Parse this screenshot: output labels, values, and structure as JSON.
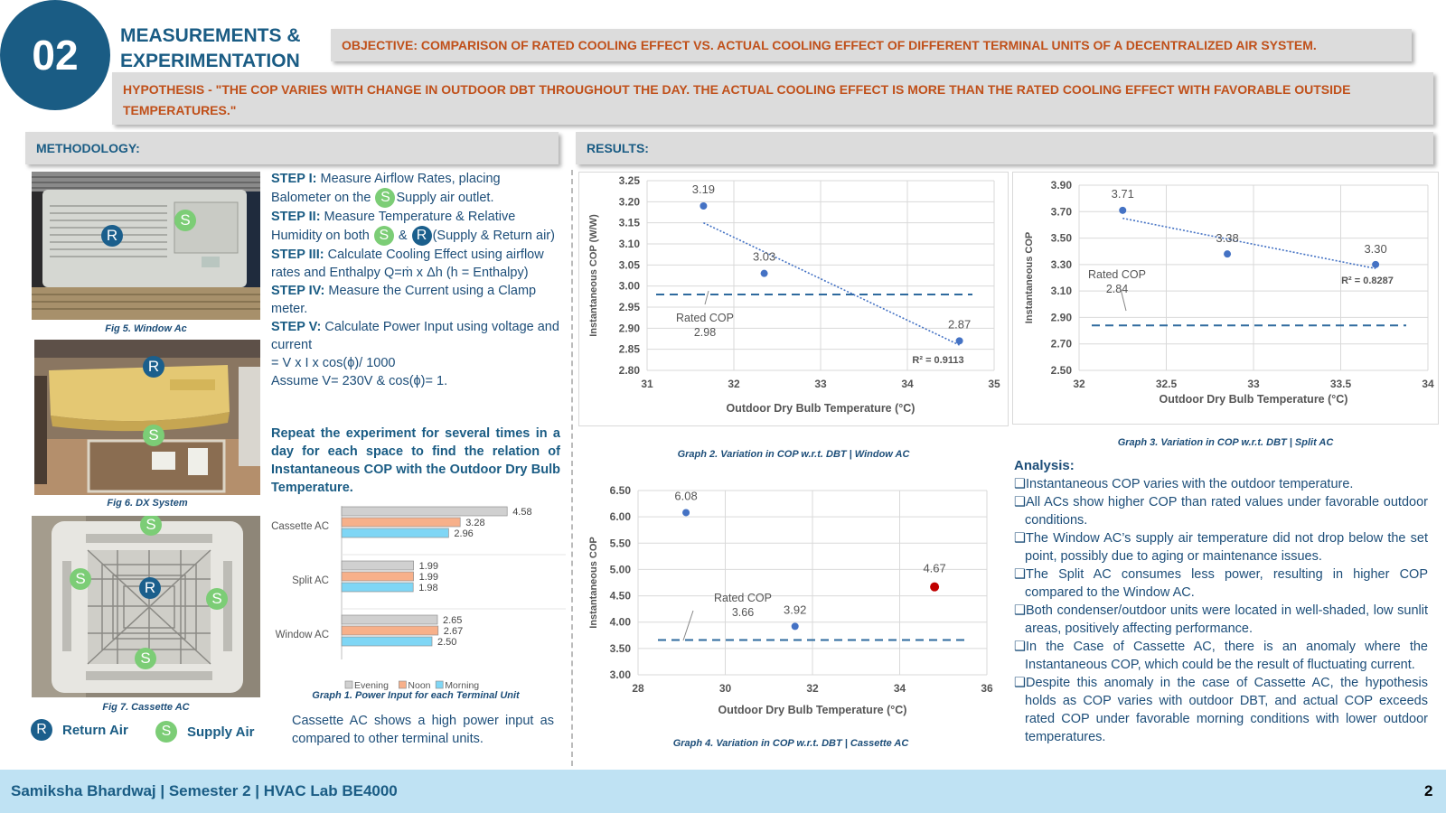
{
  "header": {
    "number": "02",
    "title_line1": "MEASUREMENTS &",
    "title_line2": "EXPERIMENTATION",
    "objective": "OBJECTIVE: COMPARISON OF RATED COOLING EFFECT VS. ACTUAL COOLING EFFECT OF DIFFERENT TERMINAL UNITS OF A DECENTRALIZED AIR SYSTEM.",
    "hypothesis": "HYPOTHESIS - \"THE COP VARIES WITH CHANGE IN OUTDOOR DBT THROUGHOUT THE DAY. THE ACTUAL COOLING EFFECT IS MORE THAN THE RATED COOLING EFFECT WITH FAVORABLE OUTSIDE TEMPERATURES.\""
  },
  "methodology": {
    "label": "METHODOLOGY:",
    "figures": [
      {
        "caption": "Fig 5. Window Ac"
      },
      {
        "caption": "Fig 6. DX System"
      },
      {
        "caption": "Fig 7. Cassette AC"
      }
    ],
    "marker_s": "S",
    "marker_r": "R",
    "legend": {
      "return_air": "Return Air",
      "supply_air": "Supply Air"
    },
    "steps": {
      "s1_label": "STEP I:",
      "s1_a": " Measure Airflow Rates, placing Balometer on the ",
      "s1_b": "Supply air outlet.",
      "s2_label": "STEP II:",
      "s2_a": " Measure Temperature & Relative Humidity on both ",
      "s2_amp": " & ",
      "s2_b": "(Supply & Return air)",
      "s3_label": "STEP III:",
      "s3_text": " Calculate Cooling Effect using airflow rates and Enthalpy Q=ṁ x Δh (h = Enthalpy)",
      "s4_label": "STEP IV:",
      "s4_text": " Measure the Current using a Clamp meter.",
      "s5_label": "STEP V:",
      "s5_text": " Calculate Power Input using voltage and current",
      "formula": "= V x I x cos(ϕ)/ 1000",
      "assume": "Assume V= 230V & cos(ϕ)= 1."
    },
    "repeat": "Repeat the experiment for several times in a day for each space to find the relation of Instantaneous COP with the Outdoor Dry Bulb Temperature.",
    "bar_caption": "Graph 1. Power Input for each Terminal Unit",
    "bar_note": "Cassette AC shows a high power input as compared to other terminal units."
  },
  "results": {
    "label": "RESULTS:"
  },
  "colors": {
    "navy": "#1a5c84",
    "orange_text": "#c0501a",
    "point": "#4472c4",
    "anomaly": "#c00000",
    "evening": "#d0d0d0",
    "noon": "#f7b08a",
    "morning": "#7fd6f5"
  },
  "chart_data": [
    {
      "id": "graph1",
      "type": "bar",
      "orientation": "horizontal",
      "title": "Graph 1. Power Input for each Terminal Unit",
      "categories": [
        "Cassette AC",
        "Split AC",
        "Window AC"
      ],
      "series": [
        {
          "name": "Evening",
          "values": [
            4.58,
            1.99,
            2.65
          ]
        },
        {
          "name": "Noon",
          "values": [
            3.28,
            1.99,
            2.67
          ]
        },
        {
          "name": "Morning",
          "values": [
            2.96,
            1.98,
            2.5
          ]
        }
      ],
      "legend": "bottom"
    },
    {
      "id": "graph2",
      "type": "scatter",
      "title": "Graph 2. Variation in COP w.r.t. DBT | Window AC",
      "xlabel": "Outdoor Dry Bulb Temperature (°C)",
      "ylabel": "Instantaneous COP (W/W)",
      "xlim": [
        31,
        35
      ],
      "ylim": [
        2.8,
        3.25
      ],
      "xticks": [
        "31",
        "32",
        "33",
        "34",
        "35"
      ],
      "yticks": [
        "3.25",
        "3.20",
        "3.15",
        "3.10",
        "3.05",
        "3.00",
        "2.95",
        "2.90",
        "2.85",
        "2.80"
      ],
      "points": [
        {
          "x": 31.65,
          "y": 3.19,
          "label": "3.19"
        },
        {
          "x": 32.35,
          "y": 3.03,
          "label": "3.03"
        },
        {
          "x": 34.6,
          "y": 2.87,
          "label": "2.87"
        }
      ],
      "trend": {
        "x": [
          31.65,
          34.6
        ],
        "y": [
          3.15,
          2.86
        ]
      },
      "r2": "R² = 0.9113",
      "rated_cop": 2.98,
      "rated_label": "Rated COP",
      "rated_value": "2.98"
    },
    {
      "id": "graph3",
      "type": "scatter",
      "title": "Graph 3. Variation in COP w.r.t. DBT | Split AC",
      "xlabel": "Outdoor Dry Bulb Temperature (°C)",
      "ylabel": "Instantaneous COP",
      "xlim": [
        32,
        34
      ],
      "ylim": [
        2.5,
        3.9
      ],
      "xticks": [
        "32",
        "32.5",
        "33",
        "33.5",
        "34"
      ],
      "yticks": [
        "3.90",
        "3.70",
        "3.50",
        "3.30",
        "3.10",
        "2.90",
        "2.70",
        "2.50"
      ],
      "points": [
        {
          "x": 32.25,
          "y": 3.71,
          "label": "3.71"
        },
        {
          "x": 32.85,
          "y": 3.38,
          "label": "3.38"
        },
        {
          "x": 33.7,
          "y": 3.3,
          "label": "3.30"
        }
      ],
      "trend": {
        "x": [
          32.25,
          33.7
        ],
        "y": [
          3.65,
          3.27
        ]
      },
      "r2": "R² = 0.8287",
      "rated_cop": 2.84,
      "rated_label": "Rated COP",
      "rated_value": "2.84"
    },
    {
      "id": "graph4",
      "type": "scatter",
      "title": "Graph 4. Variation in COP w.r.t. DBT | Cassette AC",
      "xlabel": "Outdoor Dry Bulb Temperature (°C)",
      "ylabel": "Instantaneous COP",
      "xlim": [
        28,
        36
      ],
      "ylim": [
        3.0,
        6.5
      ],
      "xticks": [
        "28",
        "30",
        "32",
        "34",
        "36"
      ],
      "yticks": [
        "6.50",
        "6.00",
        "5.50",
        "5.00",
        "4.50",
        "4.00",
        "3.50",
        "3.00"
      ],
      "points": [
        {
          "x": 29.1,
          "y": 6.08,
          "label": "6.08"
        },
        {
          "x": 31.6,
          "y": 3.92,
          "label": "3.92"
        },
        {
          "x": 34.8,
          "y": 4.67,
          "label": "4.67",
          "anomaly": true
        }
      ],
      "rated_cop": 3.66,
      "rated_label": "Rated COP",
      "rated_value": "3.66"
    }
  ],
  "analysis": {
    "heading": "Analysis:",
    "bullet": "❑",
    "items": [
      "Instantaneous COP varies with the outdoor temperature.",
      "All ACs show higher COP than rated values under favorable outdoor conditions.",
      "The Window AC’s supply air temperature did not drop below the set point, possibly due to aging or maintenance issues.",
      "The Split AC consumes less power, resulting in higher COP compared to the Window AC.",
      "Both condenser/outdoor units were located in well-shaded, low sunlit areas, positively affecting performance.",
      "In the Case of Cassette AC, there is an anomaly where the Instantaneous COP, which could be the result of fluctuating current.",
      "Despite this anomaly in the case of Cassette AC, the hypothesis holds as COP varies with outdoor DBT, and actual COP exceeds rated COP under favorable morning conditions with lower outdoor temperatures."
    ]
  },
  "footer": {
    "text": "Samiksha Bhardwaj | Semester 2 | HVAC Lab BE4000",
    "page": "2"
  }
}
